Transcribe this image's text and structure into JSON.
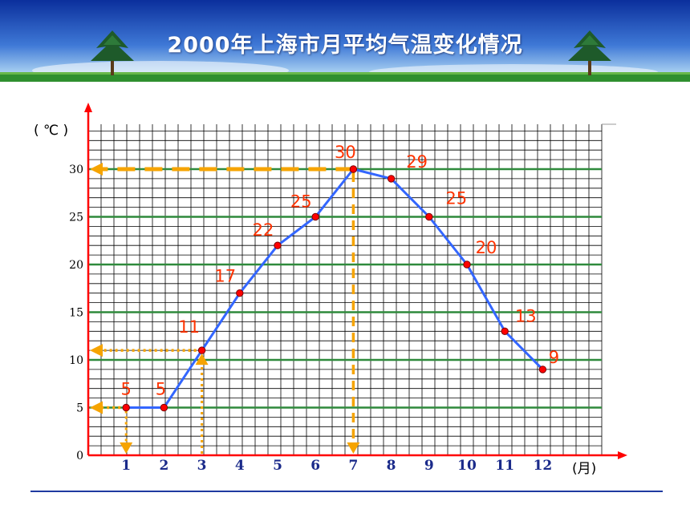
{
  "title": "2000年上海市月平均气温变化情况",
  "colors": {
    "banner_top": "#0b2f9c",
    "banner_mid": "#3e78d6",
    "banner_light": "#9cc6ee",
    "grass": "#2f8f2f",
    "line": "#3366ff",
    "point": "#ff0000",
    "label": "#ff3300",
    "guide": "#f6a400",
    "axis": "#ff0000",
    "grid_fine": "#000000",
    "grid_major": "#2f8a3c",
    "rule": "#1f3aa0"
  },
  "chart_data": {
    "type": "line",
    "x": [
      1,
      2,
      3,
      4,
      5,
      6,
      7,
      8,
      9,
      10,
      11,
      12
    ],
    "x_tick_labels": [
      "1",
      "2",
      "3",
      "4",
      "5",
      "6",
      "7",
      "8",
      "9",
      "10",
      "11",
      "12"
    ],
    "values": [
      5,
      5,
      11,
      17,
      22,
      25,
      30,
      29,
      25,
      20,
      13,
      9
    ],
    "data_labels": [
      "5",
      "5",
      "11",
      "17",
      "22",
      "25",
      "30",
      "29",
      "25",
      "20",
      "13",
      "9"
    ],
    "y_ticks": [
      0,
      5,
      10,
      15,
      20,
      25,
      30
    ],
    "y_tick_labels": [
      "0",
      "5",
      "10",
      "15",
      "20",
      "25",
      "30"
    ],
    "ylabel": "( ℃ )",
    "xlabel": "(月)",
    "xlim": [
      0,
      13.5
    ],
    "ylim": [
      0,
      35
    ],
    "grid": true,
    "guides": [
      {
        "x": 1,
        "y": 5
      },
      {
        "x": 3,
        "y": 11
      },
      {
        "x": 7,
        "y": 30
      }
    ]
  }
}
